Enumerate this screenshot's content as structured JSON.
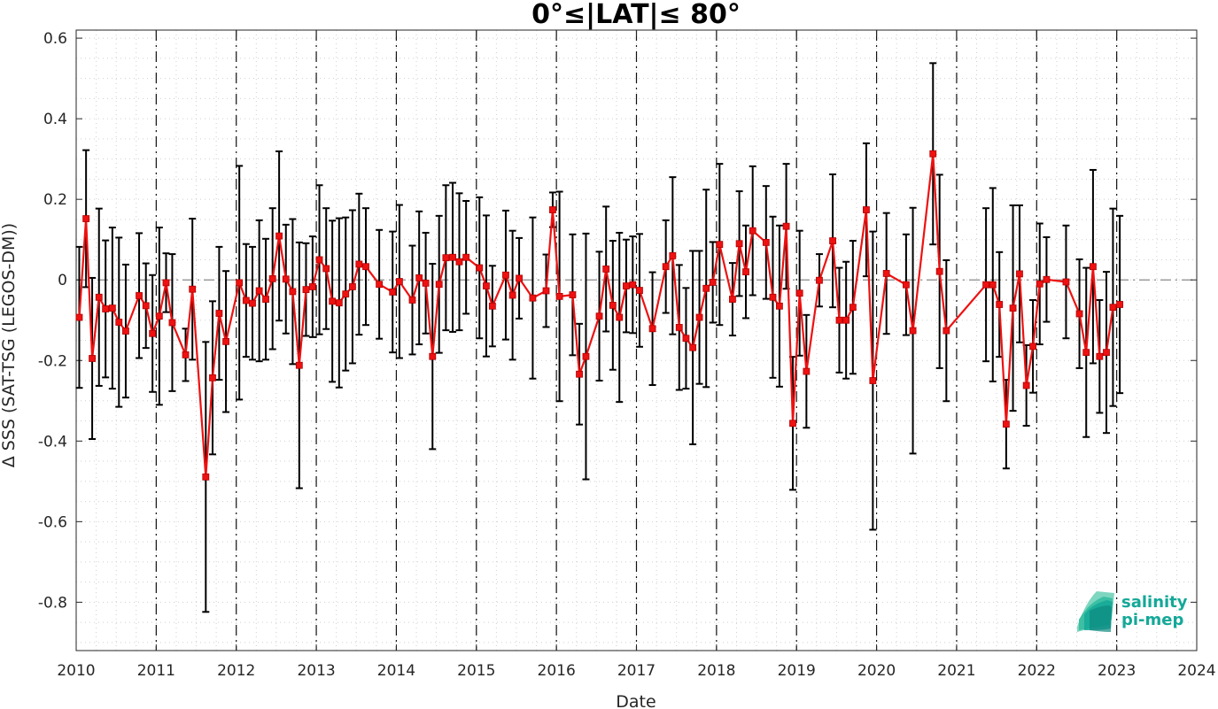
{
  "colors": {
    "series": "#ee1111",
    "error_bars": "#000000",
    "zero_line": "#8a8a8a",
    "logo": "#14a898"
  },
  "logo": {
    "line1": "salinity",
    "line2": "pi-mep"
  },
  "chart_data": {
    "type": "line",
    "title": "0°≤|LAT|≤ 80°",
    "xlabel": "Date",
    "ylabel": "Δ SSS (SAT-TSG (LEGOS-DM))",
    "xlim": [
      "2010-01-01",
      "2024-01-01"
    ],
    "ylim": [
      -0.92,
      0.62
    ],
    "xticks": [
      "2010",
      "2011",
      "2012",
      "2013",
      "2014",
      "2015",
      "2016",
      "2017",
      "2018",
      "2019",
      "2020",
      "2021",
      "2022",
      "2023",
      "2024"
    ],
    "yticks": [
      -0.8,
      -0.6,
      -0.4,
      -0.2,
      0,
      0.2,
      0.4,
      0.6
    ],
    "ytick_labels": [
      "-0.8",
      "-0.6",
      "-0.4",
      "-0.2",
      "0",
      "0.2",
      "0.4",
      "0.6"
    ],
    "grid": "dotted minor grid",
    "year_lines": "dash-dot vertical lines at each year",
    "zero_line": "dash-dot horizontal line at 0",
    "marker": "square",
    "series": [
      {
        "x": [
          "2010-01-15",
          "2010-02-15",
          "2010-03-15",
          "2010-04-15",
          "2010-05-15",
          "2010-06-15",
          "2010-07-15",
          "2010-08-15",
          "2010-10-15",
          "2010-11-15",
          "2010-12-15",
          "2011-01-15",
          "2011-02-15",
          "2011-03-15",
          "2011-05-15",
          "2011-06-15",
          "2011-08-15",
          "2011-09-15",
          "2011-10-15",
          "2011-11-15",
          "2012-01-15",
          "2012-02-15",
          "2012-03-15",
          "2012-04-15",
          "2012-05-15",
          "2012-06-15",
          "2012-07-15",
          "2012-08-15",
          "2012-09-15",
          "2012-10-15",
          "2012-11-15",
          "2012-12-15",
          "2013-01-15",
          "2013-02-15",
          "2013-03-15",
          "2013-04-15",
          "2013-05-15",
          "2013-06-15",
          "2013-07-15",
          "2013-08-15",
          "2013-10-15",
          "2013-12-15",
          "2014-01-15",
          "2014-03-15",
          "2014-04-15",
          "2014-05-15",
          "2014-06-15",
          "2014-07-15",
          "2014-08-15",
          "2014-09-15",
          "2014-10-15",
          "2014-11-15",
          "2015-01-15",
          "2015-02-15",
          "2015-03-15",
          "2015-05-15",
          "2015-06-15",
          "2015-07-15",
          "2015-09-15",
          "2015-11-15",
          "2015-12-15",
          "2016-01-15",
          "2016-03-15",
          "2016-04-15",
          "2016-05-15",
          "2016-07-15",
          "2016-08-15",
          "2016-09-15",
          "2016-10-15",
          "2016-11-15",
          "2016-12-15",
          "2017-01-15",
          "2017-03-15",
          "2017-05-15",
          "2017-06-15",
          "2017-07-15",
          "2017-08-15",
          "2017-09-15",
          "2017-10-15",
          "2017-11-15",
          "2017-12-15",
          "2018-01-15",
          "2018-03-15",
          "2018-04-15",
          "2018-05-15",
          "2018-06-15",
          "2018-08-15",
          "2018-09-15",
          "2018-10-15",
          "2018-11-15",
          "2018-12-15",
          "2019-01-15",
          "2019-02-15",
          "2019-04-15",
          "2019-06-15",
          "2019-07-15",
          "2019-08-15",
          "2019-09-15",
          "2019-11-15",
          "2019-12-15",
          "2020-02-15",
          "2020-05-15",
          "2020-06-15",
          "2020-09-15",
          "2020-10-15",
          "2020-11-15",
          "2021-05-15",
          "2021-06-15",
          "2021-07-15",
          "2021-08-15",
          "2021-09-15",
          "2021-10-15",
          "2021-11-15",
          "2021-12-15",
          "2022-01-15",
          "2022-02-15",
          "2022-05-15",
          "2022-07-15",
          "2022-08-15",
          "2022-09-15",
          "2022-10-15",
          "2022-11-15",
          "2022-12-15",
          "2023-01-15"
        ],
        "y": [
          -0.093,
          0.152,
          -0.195,
          -0.043,
          -0.072,
          -0.07,
          -0.105,
          -0.127,
          -0.039,
          -0.064,
          -0.133,
          -0.09,
          -0.007,
          -0.106,
          -0.186,
          -0.023,
          -0.489,
          -0.243,
          -0.083,
          -0.153,
          -0.007,
          -0.051,
          -0.058,
          -0.027,
          -0.048,
          0.003,
          0.109,
          0.002,
          -0.029,
          -0.212,
          -0.024,
          -0.017,
          0.05,
          0.028,
          -0.053,
          -0.057,
          -0.035,
          -0.017,
          0.039,
          0.033,
          -0.011,
          -0.03,
          -0.004,
          -0.05,
          0.005,
          -0.008,
          -0.19,
          -0.011,
          0.055,
          0.056,
          0.045,
          0.056,
          0.03,
          -0.015,
          -0.065,
          0.012,
          -0.038,
          0.004,
          -0.045,
          -0.027,
          0.174,
          -0.041,
          -0.037,
          -0.234,
          -0.19,
          -0.09,
          0.027,
          -0.063,
          -0.093,
          -0.015,
          -0.012,
          -0.026,
          -0.121,
          0.033,
          0.06,
          -0.118,
          -0.145,
          -0.168,
          -0.093,
          -0.021,
          -0.006,
          0.088,
          -0.048,
          0.09,
          0.02,
          0.122,
          0.093,
          -0.043,
          -0.065,
          0.133,
          -0.356,
          -0.033,
          -0.227,
          -0.001,
          0.097,
          -0.1,
          -0.1,
          -0.068,
          0.174,
          -0.25,
          0.016,
          -0.012,
          -0.126,
          0.313,
          0.021,
          -0.126,
          -0.012,
          -0.012,
          -0.061,
          -0.358,
          -0.07,
          0.015,
          -0.262,
          -0.165,
          -0.01,
          0.001,
          -0.005,
          -0.084,
          -0.18,
          0.033,
          -0.19,
          -0.18,
          -0.068,
          -0.061
        ],
        "error": [
          0.175,
          0.17,
          0.2,
          0.22,
          0.17,
          0.2,
          0.21,
          0.165,
          0.155,
          0.105,
          0.145,
          0.22,
          0.073,
          0.17,
          0.065,
          0.175,
          0.335,
          0.19,
          0.165,
          0.175,
          0.29,
          0.14,
          0.14,
          0.175,
          0.15,
          0.175,
          0.21,
          0.135,
          0.18,
          0.305,
          0.115,
          0.125,
          0.185,
          0.15,
          0.2,
          0.21,
          0.19,
          0.19,
          0.175,
          0.145,
          0.135,
          0.15,
          0.19,
          0.135,
          0.165,
          0.125,
          0.23,
          0.17,
          0.18,
          0.185,
          0.17,
          0.14,
          0.175,
          0.175,
          0.1,
          0.16,
          0.16,
          0.1,
          0.2,
          0.09,
          0.043,
          0.26,
          0.15,
          0.125,
          0.305,
          0.16,
          0.155,
          0.16,
          0.21,
          0.115,
          0.12,
          0.14,
          0.14,
          0.115,
          0.195,
          0.155,
          0.125,
          0.24,
          0.165,
          0.245,
          0.1,
          0.2,
          0.09,
          0.13,
          0.115,
          0.16,
          0.14,
          0.2,
          0.2,
          0.155,
          0.165,
          0.155,
          0.14,
          0.065,
          0.165,
          0.13,
          0.145,
          0.165,
          0.165,
          0.37,
          0.15,
          0.125,
          0.305,
          0.225,
          0.24,
          0.175,
          0.19,
          0.24,
          0.13,
          0.11,
          0.255,
          0.17,
          0.1,
          0.115,
          0.15,
          0.105,
          0.14,
          0.135,
          0.21,
          0.24,
          0.14,
          0.2,
          0.245,
          0.22
        ]
      }
    ]
  }
}
